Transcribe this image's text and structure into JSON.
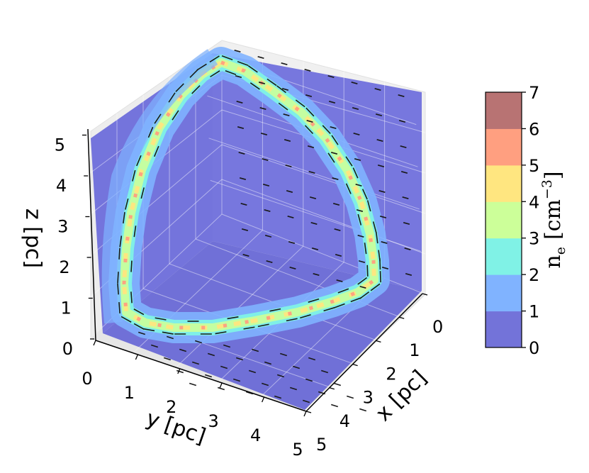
{
  "chart_data": {
    "type": "3d-field-plot",
    "axes": {
      "x": {
        "label": "x [pc]",
        "ticks": [
          "0",
          "1",
          "2",
          "3",
          "4",
          "5"
        ],
        "lim": [
          0,
          5
        ]
      },
      "y": {
        "label": "y [pc]",
        "ticks": [
          "0",
          "1",
          "2",
          "3",
          "4",
          "5"
        ],
        "lim": [
          0,
          5
        ]
      },
      "z": {
        "label": "z [pc]",
        "ticks": [
          "0",
          "1",
          "2",
          "3",
          "4",
          "5"
        ],
        "lim": [
          0,
          5
        ]
      }
    },
    "colorbar": {
      "label_base": "n",
      "label_sub": "e",
      "label_unit": "[cm",
      "label_exp": "−3",
      "label_close": "]",
      "ticks": [
        "0",
        "1",
        "2",
        "3",
        "4",
        "5",
        "6",
        "7"
      ],
      "range": [
        0,
        7
      ],
      "level_colors": [
        "#7373d9",
        "#80b3ff",
        "#80f2e6",
        "#ccff99",
        "#ffe680",
        "#ff9f80",
        "#b87373"
      ]
    },
    "loop": {
      "description_visible": false,
      "path": [
        [
          0.0,
          4.7,
          4.7
        ],
        [
          0.0,
          4.0,
          4.85
        ],
        [
          0.0,
          3.0,
          4.95
        ],
        [
          0.0,
          2.0,
          4.9
        ],
        [
          0.0,
          1.2,
          4.7
        ],
        [
          0.0,
          0.6,
          4.2
        ],
        [
          0.0,
          0.3,
          3.3
        ],
        [
          0.0,
          0.15,
          2.3
        ],
        [
          0.0,
          0.05,
          1.2
        ],
        [
          0.0,
          0.05,
          0.5
        ],
        [
          0.3,
          0.0,
          0.05
        ],
        [
          1.2,
          0.0,
          0.0
        ],
        [
          2.3,
          0.0,
          0.0
        ],
        [
          3.3,
          0.0,
          0.0
        ],
        [
          4.1,
          0.0,
          0.1
        ],
        [
          4.55,
          0.0,
          0.15
        ],
        [
          4.6,
          0.0,
          0.6
        ],
        [
          4.4,
          0.0,
          1.5
        ],
        [
          4.0,
          0.0,
          2.5
        ],
        [
          3.5,
          0.0,
          3.4
        ],
        [
          2.8,
          0.0,
          4.1
        ],
        [
          1.8,
          0.0,
          4.6
        ],
        [
          0.9,
          0.0,
          4.8
        ],
        [
          0.3,
          0.0,
          4.75
        ],
        [
          0.0,
          4.7,
          4.7
        ]
      ]
    }
  }
}
